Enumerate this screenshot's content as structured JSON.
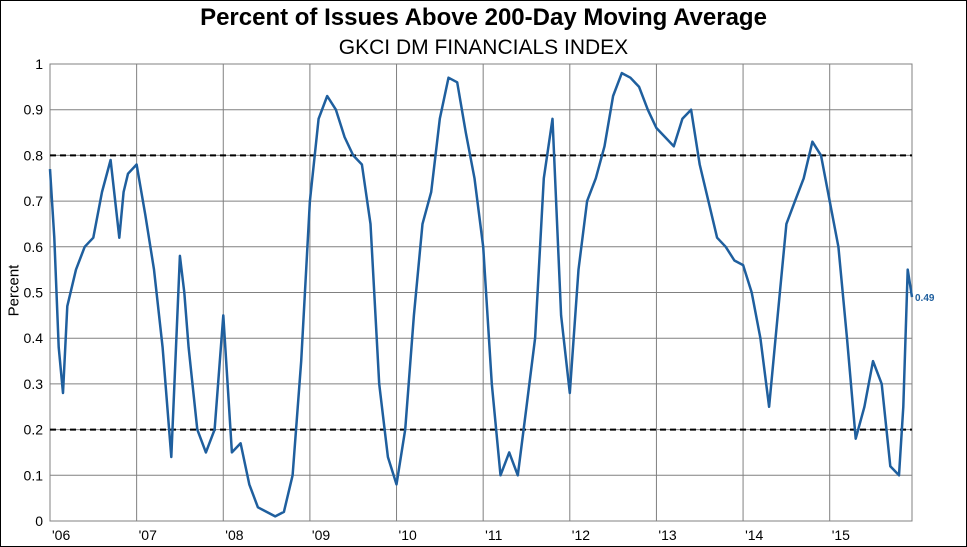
{
  "chart_data": {
    "type": "line",
    "title": "Percent of Issues Above 200-Day Moving Average",
    "subtitle": "GKCI DM FINANCIALS INDEX",
    "ylabel": "Percent",
    "xlabel": "",
    "ylim": [
      0,
      1
    ],
    "xlim": [
      2006.0,
      2015.95
    ],
    "y_ticks": [
      0,
      0.1,
      0.2,
      0.3,
      0.4,
      0.5,
      0.6,
      0.7,
      0.8,
      0.9,
      1
    ],
    "y_tick_labels": [
      "0",
      "0.1",
      "0.2",
      "0.3",
      "0.4",
      "0.5",
      "0.6",
      "0.7",
      "0.8",
      "0.9",
      "1"
    ],
    "x_ticks": [
      2006,
      2007,
      2008,
      2009,
      2010,
      2011,
      2012,
      2013,
      2014,
      2015
    ],
    "x_tick_labels": [
      "'06",
      "'07",
      "'08",
      "'09",
      "'10",
      "'11",
      "'12",
      "'13",
      "'14",
      "'15"
    ],
    "grid": true,
    "reference_lines": [
      {
        "y": 0.8,
        "style": "dashed",
        "color": "#000000"
      },
      {
        "y": 0.2,
        "style": "dashed",
        "color": "#000000"
      }
    ],
    "series_color": "#1f5f9e",
    "end_label": "0.49",
    "x": [
      2006.0,
      2006.05,
      2006.1,
      2006.15,
      2006.2,
      2006.3,
      2006.4,
      2006.5,
      2006.6,
      2006.7,
      2006.8,
      2006.85,
      2006.9,
      2007.0,
      2007.1,
      2007.2,
      2007.3,
      2007.4,
      2007.5,
      2007.55,
      2007.6,
      2007.7,
      2007.8,
      2007.9,
      2008.0,
      2008.05,
      2008.1,
      2008.2,
      2008.3,
      2008.4,
      2008.5,
      2008.6,
      2008.7,
      2008.8,
      2008.9,
      2009.0,
      2009.1,
      2009.2,
      2009.3,
      2009.4,
      2009.5,
      2009.6,
      2009.7,
      2009.8,
      2009.9,
      2010.0,
      2010.1,
      2010.2,
      2010.3,
      2010.4,
      2010.5,
      2010.6,
      2010.7,
      2010.8,
      2010.9,
      2011.0,
      2011.1,
      2011.2,
      2011.3,
      2011.4,
      2011.5,
      2011.6,
      2011.7,
      2011.8,
      2011.9,
      2012.0,
      2012.1,
      2012.2,
      2012.3,
      2012.4,
      2012.5,
      2012.6,
      2012.7,
      2012.8,
      2012.9,
      2013.0,
      2013.1,
      2013.2,
      2013.3,
      2013.4,
      2013.5,
      2013.6,
      2013.7,
      2013.8,
      2013.9,
      2014.0,
      2014.1,
      2014.2,
      2014.3,
      2014.4,
      2014.5,
      2014.6,
      2014.7,
      2014.8,
      2014.9,
      2015.0,
      2015.1,
      2015.2,
      2015.3,
      2015.4,
      2015.5,
      2015.6,
      2015.7,
      2015.8,
      2015.85,
      2015.9,
      2015.95
    ],
    "values": [
      0.77,
      0.62,
      0.38,
      0.28,
      0.47,
      0.55,
      0.6,
      0.62,
      0.72,
      0.79,
      0.62,
      0.72,
      0.76,
      0.78,
      0.67,
      0.55,
      0.38,
      0.14,
      0.58,
      0.5,
      0.38,
      0.2,
      0.15,
      0.2,
      0.45,
      0.3,
      0.15,
      0.17,
      0.08,
      0.03,
      0.02,
      0.01,
      0.02,
      0.1,
      0.35,
      0.7,
      0.88,
      0.93,
      0.9,
      0.84,
      0.8,
      0.78,
      0.65,
      0.3,
      0.14,
      0.08,
      0.2,
      0.45,
      0.65,
      0.72,
      0.88,
      0.97,
      0.96,
      0.85,
      0.75,
      0.6,
      0.3,
      0.1,
      0.15,
      0.1,
      0.25,
      0.4,
      0.75,
      0.88,
      0.45,
      0.28,
      0.55,
      0.7,
      0.75,
      0.82,
      0.93,
      0.98,
      0.97,
      0.95,
      0.9,
      0.86,
      0.84,
      0.82,
      0.88,
      0.9,
      0.78,
      0.7,
      0.62,
      0.6,
      0.57,
      0.56,
      0.5,
      0.4,
      0.25,
      0.45,
      0.65,
      0.7,
      0.75,
      0.83,
      0.8,
      0.7,
      0.6,
      0.4,
      0.18,
      0.25,
      0.35,
      0.3,
      0.12,
      0.1,
      0.25,
      0.55,
      0.49
    ]
  }
}
